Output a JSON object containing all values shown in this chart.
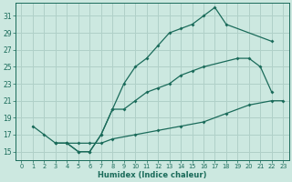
{
  "xlabel": "Humidex (Indice chaleur)",
  "ylabel": "",
  "bg_color": "#cce8e0",
  "grid_color": "#b0d0c8",
  "line_color": "#1a6b5a",
  "line1_x": [
    1,
    2,
    3,
    4,
    5,
    6,
    7,
    8,
    9,
    10,
    11,
    12,
    13,
    14,
    15,
    16,
    17,
    18,
    22
  ],
  "line1_y": [
    18,
    17,
    16,
    16,
    15,
    15,
    17,
    20,
    23,
    25,
    26,
    27.5,
    29,
    29.5,
    30,
    31,
    32,
    30,
    28
  ],
  "line2_x": [
    3,
    4,
    5,
    6,
    7,
    8,
    9,
    10,
    11,
    12,
    13,
    14,
    15,
    16,
    19,
    20,
    21,
    22
  ],
  "line2_y": [
    16,
    16,
    15,
    15,
    17,
    20,
    20,
    21,
    22,
    22.5,
    23,
    24,
    24.5,
    25,
    26,
    26,
    25,
    22
  ],
  "line3_x": [
    3,
    4,
    5,
    6,
    7,
    8,
    10,
    12,
    14,
    16,
    18,
    20,
    22,
    23
  ],
  "line3_y": [
    16,
    16,
    16,
    16,
    16,
    16.5,
    17,
    17.5,
    18,
    18.5,
    19.5,
    20.5,
    21,
    21
  ],
  "xlim": [
    -0.5,
    23.5
  ],
  "ylim": [
    14,
    32.5
  ],
  "yticks": [
    15,
    17,
    19,
    21,
    23,
    25,
    27,
    29,
    31
  ],
  "xticks": [
    0,
    1,
    2,
    3,
    4,
    5,
    6,
    7,
    8,
    9,
    10,
    11,
    12,
    13,
    14,
    15,
    16,
    17,
    18,
    19,
    20,
    21,
    22,
    23
  ]
}
